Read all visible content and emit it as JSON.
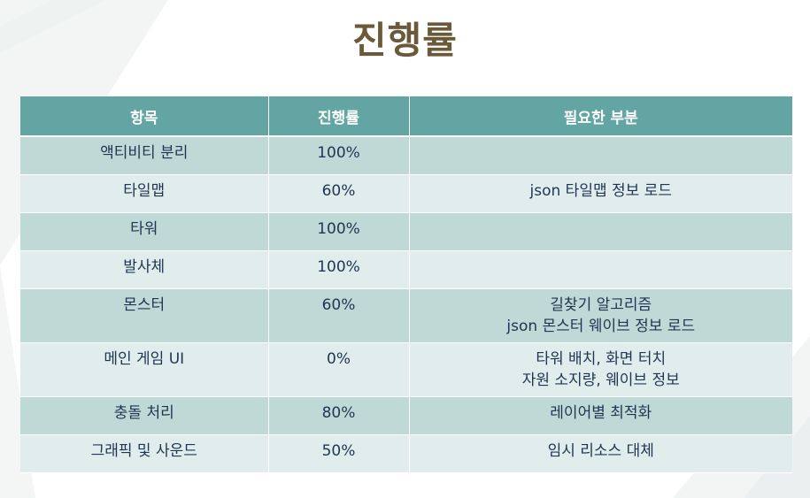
{
  "page": {
    "title": "진행률"
  },
  "table": {
    "headers": [
      "항목",
      "진행률",
      "필요한 부분"
    ],
    "rows": [
      {
        "item": "액티비티 분리",
        "progress": "100%",
        "needs": []
      },
      {
        "item": "타일맵",
        "progress": "60%",
        "needs": [
          "json 타일맵 정보 로드"
        ]
      },
      {
        "item": "타워",
        "progress": "100%",
        "needs": []
      },
      {
        "item": "발사체",
        "progress": "100%",
        "needs": []
      },
      {
        "item": "몬스터",
        "progress": "60%",
        "needs": [
          "길찾기 알고리즘",
          "json 몬스터 웨이브 정보 로드"
        ]
      },
      {
        "item": "메인 게임 UI",
        "progress": "0%",
        "needs": [
          "타워 배치, 화면 터치",
          "자원 소지량, 웨이브 정보"
        ]
      },
      {
        "item": "충돌 처리",
        "progress": "80%",
        "needs": [
          "레이어별 최적화"
        ]
      },
      {
        "item": "그래픽 및 사운드",
        "progress": "50%",
        "needs": [
          "임시 리소스 대체"
        ]
      }
    ]
  },
  "colors": {
    "title": "#6b5a3a",
    "header_bg": "#63a5a2",
    "row_odd": "#bfd9d7",
    "row_even": "#e0edec",
    "text": "#1f3553"
  }
}
